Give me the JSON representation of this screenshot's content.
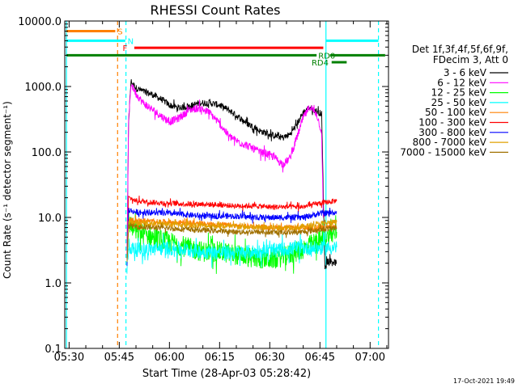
{
  "chart_data": {
    "type": "line",
    "title": "RHESSI Count Rates",
    "xlabel": "Start Time (28-Apr-03 05:28:42)",
    "ylabel": "Count Rate (s⁻¹ detector segment⁻¹)",
    "x_ticks": [
      "05:30",
      "05:45",
      "06:00",
      "06:15",
      "06:30",
      "06:45",
      "07:00"
    ],
    "x_tick_minutes": [
      30,
      45,
      60,
      75,
      90,
      105,
      120
    ],
    "xlim_minutes": [
      28.7,
      125.5
    ],
    "y_ticks": [
      "0.1",
      "1.0",
      "10.0",
      "100.0",
      "1000.0",
      "10000.0"
    ],
    "y_scale": "log",
    "ylim": [
      0.1,
      10000
    ],
    "grid": false,
    "legend_position": "right",
    "legend_header": [
      "Det 1f,3f,4f,5f,6f,9f,",
      "FDecim 3, Att 0"
    ],
    "series": [
      {
        "name": "3 - 6 keV",
        "color": "#000000",
        "x": [
          47.3,
          47.8,
          48.5,
          50,
          52,
          55,
          58,
          60,
          63,
          66,
          69,
          72,
          75,
          78,
          81,
          84,
          87,
          90,
          92,
          94,
          96,
          98,
          100,
          102,
          104,
          105.5,
          106.5,
          107,
          107.5,
          108,
          110
        ],
        "y": [
          2.5,
          300,
          1200,
          950,
          850,
          750,
          620,
          520,
          470,
          500,
          560,
          560,
          520,
          430,
          330,
          260,
          210,
          185,
          175,
          165,
          185,
          260,
          400,
          480,
          420,
          380,
          1.6,
          2.2,
          2.0,
          2.2,
          2.0
        ]
      },
      {
        "name": "6 - 12 keV",
        "color": "#ff00ff",
        "x": [
          47.3,
          47.8,
          48.5,
          50,
          52,
          55,
          58,
          60,
          63,
          66,
          69,
          72,
          75,
          78,
          81,
          84,
          87,
          90,
          92,
          93,
          94,
          96,
          98,
          100,
          102,
          104,
          105.5,
          106
        ],
        "y": [
          2.5,
          300,
          1100,
          780,
          570,
          440,
          340,
          290,
          330,
          440,
          470,
          400,
          270,
          170,
          140,
          120,
          100,
          90,
          78,
          70,
          65,
          80,
          160,
          330,
          490,
          380,
          200,
          10
        ]
      },
      {
        "name": "12 - 25 keV",
        "color": "#00ff00",
        "x": [
          47.3,
          47.8,
          50,
          55,
          60,
          65,
          70,
          75,
          80,
          85,
          90,
          95,
          100,
          105,
          110
        ],
        "y": [
          1.8,
          8.5,
          6.0,
          5.0,
          4.2,
          3.5,
          3.0,
          3.0,
          2.7,
          2.4,
          2.3,
          2.6,
          3.3,
          4.5,
          6.0
        ]
      },
      {
        "name": "25 - 50 keV",
        "color": "#00ffff",
        "x": [
          47.3,
          47.8,
          50,
          55,
          60,
          65,
          70,
          75,
          80,
          85,
          90,
          95,
          100,
          105,
          110
        ],
        "y": [
          1.6,
          3.5,
          3.2,
          3.3,
          3.4,
          3.2,
          3.0,
          2.9,
          2.9,
          3.0,
          3.1,
          3.3,
          3.4,
          3.4,
          3.5
        ]
      },
      {
        "name": "50 - 100 keV",
        "color": "#ff8000",
        "x": [
          47.3,
          47.8,
          50,
          55,
          60,
          65,
          70,
          75,
          80,
          85,
          90,
          95,
          100,
          105,
          110
        ],
        "y": [
          2.0,
          9.0,
          9.0,
          8.7,
          8.5,
          8.3,
          8.0,
          7.8,
          7.5,
          7.3,
          7.0,
          7.0,
          6.8,
          7.0,
          7.2
        ]
      },
      {
        "name": "100 - 300 keV",
        "color": "#ff0000",
        "x": [
          47.3,
          47.8,
          50,
          55,
          60,
          65,
          70,
          75,
          80,
          85,
          90,
          95,
          100,
          105,
          110
        ],
        "y": [
          2.0,
          20,
          18,
          17,
          16.5,
          16,
          16,
          15.5,
          15,
          15,
          14.5,
          14.5,
          14.5,
          16.5,
          18
        ]
      },
      {
        "name": "300 - 800 keV",
        "color": "#0000ff",
        "x": [
          47.3,
          47.8,
          50,
          55,
          60,
          65,
          70,
          75,
          80,
          85,
          90,
          95,
          100,
          105,
          110
        ],
        "y": [
          2.0,
          13,
          12,
          11.8,
          11.5,
          11,
          10.5,
          10.5,
          10.5,
          10,
          10,
          10,
          10,
          11.5,
          12
        ]
      },
      {
        "name": "800 - 7000 keV",
        "color": "#e0a000",
        "x": [
          47.3,
          47.8,
          50,
          55,
          60,
          65,
          70,
          75,
          80,
          85,
          90,
          95,
          100,
          105,
          110
        ],
        "y": [
          2.0,
          8.5,
          8.2,
          8.0,
          7.8,
          7.7,
          7.5,
          7.4,
          7.2,
          7.0,
          7.0,
          7.0,
          7.2,
          8.0,
          8.5
        ]
      },
      {
        "name": "7000 - 15000 keV",
        "color": "#a07000",
        "x": [
          47.3,
          47.8,
          50,
          55,
          60,
          65,
          70,
          75,
          80,
          85,
          90,
          95,
          100,
          105,
          110
        ],
        "y": [
          2.0,
          7.5,
          7.2,
          7.0,
          6.8,
          6.6,
          6.4,
          6.2,
          6.0,
          6.0,
          5.9,
          5.9,
          6.0,
          6.5,
          7.0
        ]
      }
    ],
    "vertical_lines": [
      {
        "x": 29.2,
        "color": "#00ffff",
        "style": "solid"
      },
      {
        "x": 44.5,
        "color": "#ff8000",
        "style": "dashed"
      },
      {
        "x": 47.0,
        "color": "#00ffff",
        "style": "dashed"
      },
      {
        "x": 106.8,
        "color": "#00ffff",
        "style": "solid"
      },
      {
        "x": 122.5,
        "color": "#00ffff",
        "style": "dashed"
      }
    ],
    "flag_bars": [
      {
        "label": "S",
        "color": "#ff8000",
        "segments": [
          [
            29.2,
            43.8
          ]
        ],
        "y": 7000,
        "label_x": 44.5
      },
      {
        "label": "N",
        "color": "#00ffff",
        "segments": [
          [
            29.2,
            46.8
          ],
          [
            106.8,
            122.5
          ]
        ],
        "y": 5000,
        "label_x": 47.5
      },
      {
        "label": "F",
        "color": "#ff0000",
        "segments": [
          [
            49.5,
            106.0
          ]
        ],
        "y": 3900,
        "label_x": 46.0
      },
      {
        "label": "RD0",
        "color": "#008000",
        "segments": [
          [
            29.2,
            104.0
          ],
          [
            108.0,
            124.5
          ]
        ],
        "y": 3000,
        "label_x": 104.5
      },
      {
        "label": "RD4",
        "color": "#008000",
        "segments": [
          [
            108.5,
            113.0
          ]
        ],
        "y": 2350,
        "label_x": 102.5
      }
    ],
    "footer_timestamp": "17-Oct-2021 19:49"
  }
}
